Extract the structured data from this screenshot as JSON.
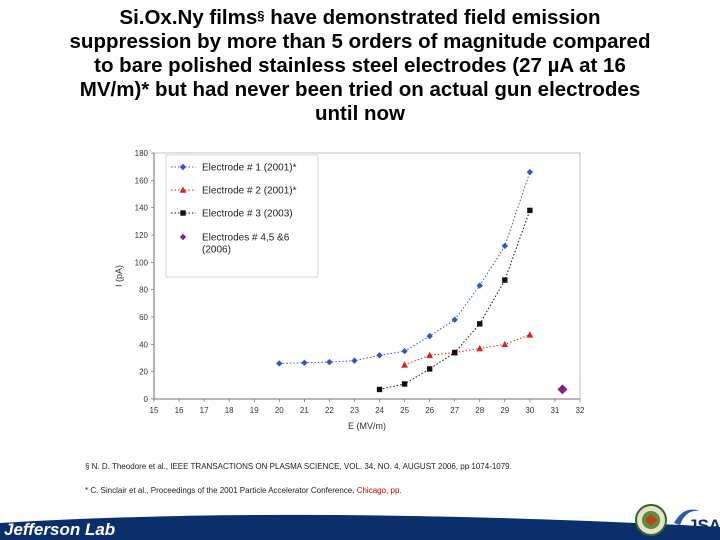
{
  "slide": {
    "title_pre": "Si",
    "title_rest": "Ox",
    "title_line1_after_sup": " have demonstrated field emission",
    "title_full": "Si.Ox.Ny films",
    "title_part1": "Si.Ox.Ny films",
    "title_sup": "§",
    "title_line1_tail": " have demonstrated field emission",
    "title_line2": "suppression by more than 5 orders of magnitude compared",
    "title_line3": "to bare polished stainless steel electrodes (27 µA at 16",
    "title_line4": "MV/m)* but had never been tried on actual gun electrodes",
    "title_line5": "until now"
  },
  "footnotes": {
    "ref1": "§ N. D. Theodore et al., IEEE TRANSACTIONS ON PLASMA SCIENCE, VOL. 34, NO. 4, AUGUST 2006, pp 1074-1079.",
    "ref2_black": "* C. Sinclair et al., Proceedings of the 2001 Particle Accelerator Conference, ",
    "ref2_red": "Chicago, pp."
  },
  "logos": {
    "left": "Jefferson Lab",
    "right": "JSA"
  },
  "chart_data": {
    "type": "scatter",
    "xlabel": "E (MV/m)",
    "ylabel": "I (pA)",
    "xlim": [
      15,
      32
    ],
    "ylim": [
      0,
      180
    ],
    "xticks": [
      15,
      16,
      17,
      18,
      19,
      20,
      21,
      22,
      23,
      24,
      25,
      26,
      27,
      28,
      29,
      30,
      31,
      32
    ],
    "yticks": [
      0,
      20,
      40,
      60,
      80,
      100,
      120,
      140,
      160,
      180
    ],
    "grid": false,
    "legend_position": "top-left",
    "series": [
      {
        "name": "Electrode # 1 (2001)*",
        "color": "#3355cc",
        "marker": "diamond",
        "line": "dotted",
        "x": [
          20,
          21,
          22,
          23,
          24,
          25,
          26,
          27,
          28,
          29,
          30
        ],
        "y": [
          26,
          26.5,
          27,
          28,
          32,
          35,
          46,
          58,
          83,
          112,
          166
        ]
      },
      {
        "name": "Electrode # 2 (2001)*",
        "color": "#dd2222",
        "marker": "triangle",
        "line": "dotted",
        "x": [
          25,
          26,
          27,
          28,
          29,
          30
        ],
        "y": [
          25,
          32,
          34,
          37,
          40,
          47
        ]
      },
      {
        "name": "Electrode # 3 (2003)",
        "color": "#111111",
        "marker": "square",
        "line": "dotted",
        "x": [
          24,
          25,
          26,
          27,
          28,
          29,
          30
        ],
        "y": [
          7,
          11,
          22,
          34,
          55,
          87,
          138
        ]
      },
      {
        "name": "Electrodes # 4,5 &6 (2006)",
        "color": "#882288",
        "marker": "diamond-large",
        "line": "none",
        "x": [
          31.3
        ],
        "y": [
          7
        ]
      }
    ]
  }
}
